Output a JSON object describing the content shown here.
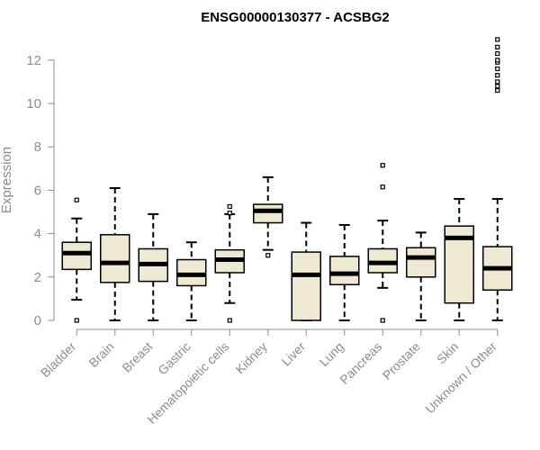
{
  "chart_data": {
    "type": "box",
    "title": "ENSG00000130377 - ACSBG2",
    "xlabel": "",
    "ylabel": "Expression",
    "ylim": [
      0,
      13
    ],
    "yticks": [
      0,
      2,
      4,
      6,
      8,
      10,
      12
    ],
    "grid": false,
    "legend": "none",
    "box_fill": "#efe8d2",
    "categories": [
      "Bladder",
      "Brain",
      "Breast",
      "Gastric",
      "Hematopoietic cells",
      "Kidney",
      "Liver",
      "Lung",
      "Pancreas",
      "Prostate",
      "Skin",
      "Unknown / Other"
    ],
    "boxes": [
      {
        "whisker_low": 0.95,
        "q1": 2.35,
        "median": 3.1,
        "q3": 3.6,
        "whisker_high": 4.7,
        "outliers": [
          0,
          5.55
        ]
      },
      {
        "whisker_low": 0,
        "q1": 1.75,
        "median": 2.65,
        "q3": 3.95,
        "whisker_high": 6.1,
        "outliers": []
      },
      {
        "whisker_low": 0,
        "q1": 1.8,
        "median": 2.6,
        "q3": 3.3,
        "whisker_high": 4.9,
        "outliers": []
      },
      {
        "whisker_low": 0,
        "q1": 1.6,
        "median": 2.1,
        "q3": 2.8,
        "whisker_high": 3.6,
        "outliers": []
      },
      {
        "whisker_low": 0.8,
        "q1": 2.2,
        "median": 2.8,
        "q3": 3.25,
        "whisker_high": 4.9,
        "outliers": [
          0,
          4.95,
          5.25
        ]
      },
      {
        "whisker_low": 3.25,
        "q1": 4.5,
        "median": 5.05,
        "q3": 5.35,
        "whisker_high": 6.6,
        "outliers": [
          3.0
        ]
      },
      {
        "whisker_low": 0,
        "q1": 0,
        "median": 2.1,
        "q3": 3.15,
        "whisker_high": 4.5,
        "outliers": []
      },
      {
        "whisker_low": 0,
        "q1": 1.65,
        "median": 2.15,
        "q3": 2.95,
        "whisker_high": 4.4,
        "outliers": []
      },
      {
        "whisker_low": 1.5,
        "q1": 2.2,
        "median": 2.65,
        "q3": 3.3,
        "whisker_high": 4.6,
        "outliers": [
          0,
          6.15,
          7.15
        ]
      },
      {
        "whisker_low": 0,
        "q1": 2.0,
        "median": 2.9,
        "q3": 3.35,
        "whisker_high": 4.05,
        "outliers": []
      },
      {
        "whisker_low": 0,
        "q1": 0.8,
        "median": 3.8,
        "q3": 4.35,
        "whisker_high": 5.6,
        "outliers": []
      },
      {
        "whisker_low": 0,
        "q1": 1.4,
        "median": 2.4,
        "q3": 3.4,
        "whisker_high": 5.6,
        "outliers": [
          10.6,
          10.8,
          11.0,
          11.3,
          11.6,
          11.9,
          12.0,
          12.3,
          12.6,
          12.95
        ]
      }
    ]
  }
}
